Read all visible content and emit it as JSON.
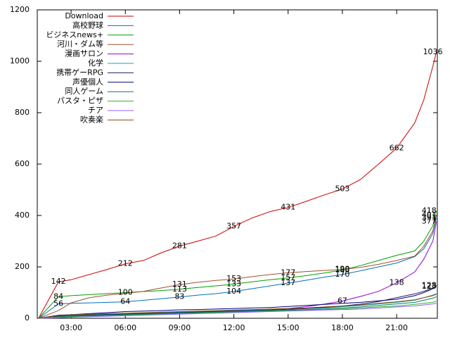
{
  "chart_data": {
    "type": "line",
    "x": [
      1.2,
      2.3,
      3,
      4,
      5,
      6,
      7,
      8,
      9,
      10,
      11,
      12,
      13,
      14,
      15,
      16,
      17,
      18,
      19,
      20,
      21,
      22,
      22.5,
      23,
      23.2
    ],
    "xlim": [
      1.13,
      23.25
    ],
    "xticks": [
      {
        "value": 3,
        "label": "03:00"
      },
      {
        "value": 6,
        "label": "06:00"
      },
      {
        "value": 9,
        "label": "09:00"
      },
      {
        "value": 12,
        "label": "12:00"
      },
      {
        "value": 15,
        "label": "15:00"
      },
      {
        "value": 18,
        "label": "18:00"
      },
      {
        "value": 21,
        "label": "21:00"
      }
    ],
    "ylim": [
      0,
      1200
    ],
    "yticks": [
      0,
      200,
      400,
      600,
      800,
      1000,
      1200
    ],
    "legend": "top-left",
    "series": [
      {
        "name": "Download",
        "color": "#cc0000",
        "values": [
          0,
          142,
          150,
          170,
          190,
          212,
          225,
          255,
          281,
          300,
          320,
          357,
          390,
          415,
          431,
          455,
          480,
          503,
          540,
          600,
          662,
          760,
          850,
          980,
          1036
        ]
      },
      {
        "name": "高校野球",
        "color": "#0072bd",
        "values": [
          0,
          56,
          58,
          60,
          62,
          64,
          70,
          76,
          83,
          90,
          96,
          104,
          115,
          126,
          137,
          148,
          160,
          170,
          185,
          200,
          215,
          240,
          270,
          330,
          391
        ]
      },
      {
        "name": "ビジネスnews+",
        "color": "#00a000",
        "values": [
          0,
          84,
          88,
          92,
          96,
          100,
          104,
          108,
          113,
          120,
          126,
          133,
          142,
          150,
          157,
          166,
          176,
          188,
          205,
          225,
          245,
          262,
          300,
          360,
          418
        ]
      },
      {
        "name": "河川・ダム等",
        "color": "#a0522d",
        "values": [
          0,
          30,
          60,
          80,
          90,
          97,
          105,
          118,
          131,
          140,
          147,
          153,
          162,
          170,
          177,
          182,
          186,
          190,
          198,
          210,
          225,
          242,
          280,
          340,
          401
        ]
      },
      {
        "name": "漫画サロン",
        "color": "#9400d3",
        "values": [
          0,
          5,
          8,
          10,
          12,
          14,
          16,
          18,
          20,
          22,
          24,
          26,
          30,
          34,
          38,
          45,
          55,
          67,
          85,
          105,
          138,
          180,
          230,
          300,
          377
        ]
      },
      {
        "name": "化学",
        "color": "#00b0b0",
        "values": [
          0,
          10,
          12,
          14,
          16,
          18,
          20,
          22,
          24,
          26,
          28,
          30,
          32,
          34,
          36,
          38,
          40,
          45,
          50,
          56,
          62,
          70,
          80,
          90,
          96
        ]
      },
      {
        "name": "携帯ゲーRPG",
        "color": "#202060",
        "values": [
          0,
          8,
          10,
          12,
          14,
          16,
          18,
          20,
          22,
          24,
          26,
          28,
          30,
          32,
          35,
          38,
          42,
          48,
          55,
          65,
          80,
          95,
          105,
          118,
          123
        ]
      },
      {
        "name": "声優個人",
        "color": "#000080",
        "values": [
          0,
          12,
          14,
          18,
          22,
          26,
          28,
          30,
          33,
          34,
          36,
          38,
          40,
          42,
          46,
          50,
          54,
          58,
          62,
          68,
          74,
          88,
          100,
          115,
          128
        ]
      },
      {
        "name": "同人ゲーム",
        "color": "#008060",
        "values": [
          0,
          6,
          8,
          10,
          12,
          14,
          16,
          18,
          20,
          22,
          24,
          26,
          28,
          30,
          32,
          34,
          36,
          40,
          44,
          50,
          56,
          62,
          70,
          78,
          84
        ]
      },
      {
        "name": "パスタ・ピザ",
        "color": "#30b030",
        "values": [
          0,
          4,
          6,
          8,
          10,
          12,
          14,
          16,
          18,
          20,
          22,
          24,
          26,
          28,
          30,
          32,
          34,
          36,
          40,
          44,
          48,
          54,
          58,
          62,
          66
        ]
      },
      {
        "name": "チア",
        "color": "#9060ff",
        "values": [
          0,
          2,
          4,
          6,
          8,
          10,
          12,
          14,
          16,
          18,
          20,
          22,
          24,
          26,
          28,
          30,
          32,
          34,
          36,
          40,
          44,
          48,
          52,
          56,
          58
        ]
      },
      {
        "name": "吹奏楽",
        "color": "#8b4513",
        "values": [
          0,
          10,
          14,
          16,
          18,
          20,
          22,
          24,
          26,
          28,
          30,
          32,
          34,
          36,
          38,
          40,
          44,
          48,
          52,
          58,
          64,
          72,
          80,
          88,
          94
        ]
      }
    ],
    "annotations": [
      {
        "x": 2.3,
        "y": 142
      },
      {
        "x": 6,
        "y": 212
      },
      {
        "x": 9,
        "y": 281
      },
      {
        "x": 12,
        "y": 357
      },
      {
        "x": 15,
        "y": 431
      },
      {
        "x": 18,
        "y": 503
      },
      {
        "x": 21,
        "y": 662
      },
      {
        "x": 23,
        "y": 1036
      },
      {
        "x": 2.3,
        "y": 84
      },
      {
        "x": 6,
        "y": 100
      },
      {
        "x": 9,
        "y": 113
      },
      {
        "x": 12,
        "y": 133
      },
      {
        "x": 15,
        "y": 157
      },
      {
        "x": 18,
        "y": 188
      },
      {
        "x": 2.3,
        "y": 56
      },
      {
        "x": 6,
        "y": 64
      },
      {
        "x": 9,
        "y": 83
      },
      {
        "x": 12,
        "y": 104
      },
      {
        "x": 15,
        "y": 137
      },
      {
        "x": 18,
        "y": 170
      },
      {
        "x": 9,
        "y": 131
      },
      {
        "x": 12,
        "y": 153
      },
      {
        "x": 15,
        "y": 177
      },
      {
        "x": 18,
        "y": 190
      },
      {
        "x": 18,
        "y": 67
      },
      {
        "x": 21,
        "y": 138
      },
      {
        "x": 23.2,
        "y": 418
      },
      {
        "x": 23.2,
        "y": 401
      },
      {
        "x": 23.2,
        "y": 391
      },
      {
        "x": 23.2,
        "y": 377
      },
      {
        "x": 23.2,
        "y": 128
      },
      {
        "x": 23.2,
        "y": 123
      }
    ]
  }
}
